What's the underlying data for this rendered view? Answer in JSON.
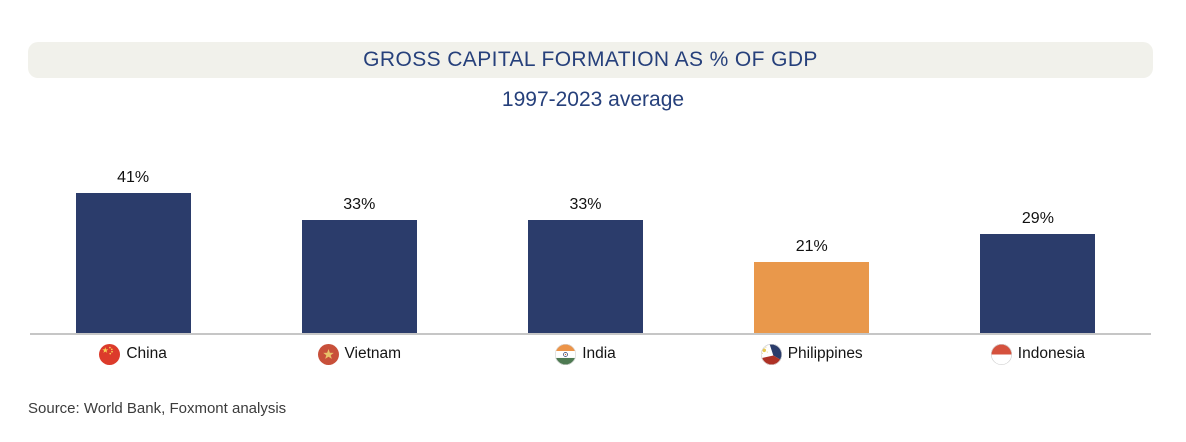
{
  "header": {
    "title": "GROSS CAPITAL FORMATION AS % OF GDP",
    "subtitle": "1997-2023 average"
  },
  "footer": {
    "source": "Source: World Bank, Foxmont analysis"
  },
  "colors": {
    "bar_default": "#2B3C6B",
    "bar_highlight": "#E9984B",
    "title_text": "#26407B",
    "banner_bg": "#F1F1EB",
    "axis_line": "#C6C6C6"
  },
  "chart_data": {
    "type": "bar",
    "title": "GROSS CAPITAL FORMATION AS % OF GDP",
    "subtitle": "1997-2023 average",
    "categories": [
      "China",
      "Vietnam",
      "India",
      "Philippines",
      "Indonesia"
    ],
    "values": [
      41,
      33,
      33,
      21,
      29
    ],
    "unit": "%",
    "ylim": [
      0,
      45
    ],
    "grid": false,
    "legend_position": "below-bars-with-flags",
    "highlight_category": "Philippines",
    "bars": [
      {
        "country": "China",
        "value": 41,
        "value_label": "41%",
        "flag": "china-flag-icon",
        "highlighted": false
      },
      {
        "country": "Vietnam",
        "value": 33,
        "value_label": "33%",
        "flag": "vietnam-flag-icon",
        "highlighted": false
      },
      {
        "country": "India",
        "value": 33,
        "value_label": "33%",
        "flag": "india-flag-icon",
        "highlighted": false
      },
      {
        "country": "Philippines",
        "value": 21,
        "value_label": "21%",
        "flag": "philippines-flag-icon",
        "highlighted": true
      },
      {
        "country": "Indonesia",
        "value": 29,
        "value_label": "29%",
        "flag": "indonesia-flag-icon",
        "highlighted": false
      }
    ]
  }
}
